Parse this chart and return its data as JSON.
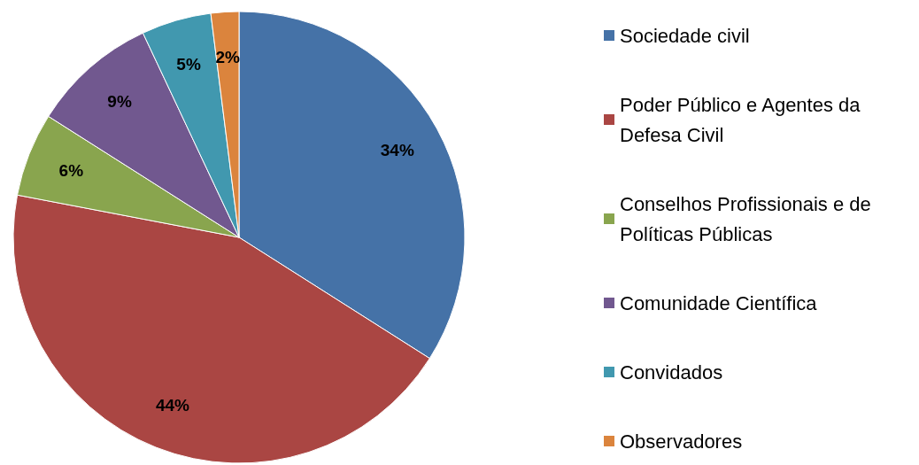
{
  "chart_data": {
    "type": "pie",
    "categories": [
      "Sociedade civil",
      "Poder Público e Agentes da Defesa Civil",
      "Conselhos Profissionais e de Políticas Públicas",
      "Comunidade Científica",
      "Convidados",
      "Observadores"
    ],
    "values": [
      34,
      44,
      6,
      9,
      5,
      2
    ],
    "value_labels": [
      "34%",
      "44%",
      "6%",
      "9%",
      "5%",
      "2%"
    ],
    "colors": [
      "#4572a7",
      "#aa4643",
      "#89a54e",
      "#71588f",
      "#4198af",
      "#db843d"
    ],
    "legend": "right"
  }
}
